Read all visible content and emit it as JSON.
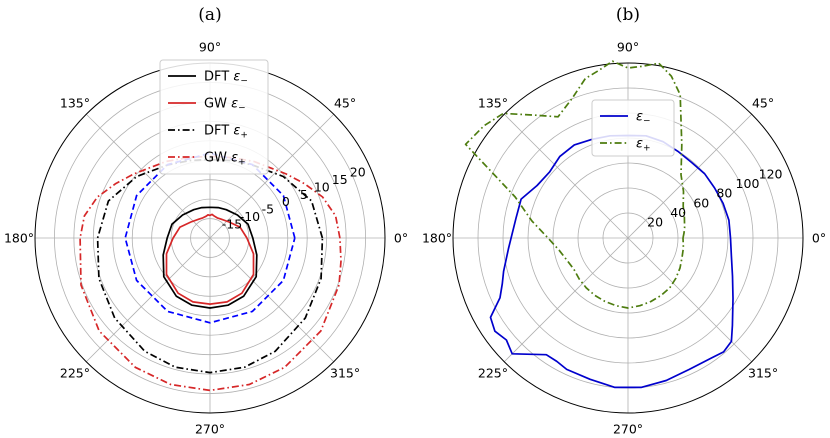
{
  "chart_data": [
    {
      "type": "line",
      "projection": "polar",
      "panel_label": "(a)",
      "title": "",
      "angle_ticks": [
        "0°",
        "45°",
        "90°",
        "135°",
        "180°",
        "225°",
        "270°",
        "315°"
      ],
      "angle_tick_values_deg": [
        0,
        45,
        90,
        135,
        180,
        225,
        270,
        315
      ],
      "radial_ticks": [
        "-15",
        "-10",
        "-5",
        "0",
        "5",
        "10",
        "15",
        "20"
      ],
      "radial_tick_values": [
        -15,
        -10,
        -5,
        0,
        5,
        10,
        15,
        20
      ],
      "rlim": [
        -20,
        25
      ],
      "radial_label_angle_deg": 22.5,
      "grid": true,
      "legend_placement": "top-center",
      "series": [
        {
          "name": "DFT ε−",
          "legend_main": "DFT ",
          "legend_symbol": "ε",
          "legend_sub": "−",
          "color": "#000000",
          "dash": "solid",
          "angles_deg": [
            0,
            20,
            40,
            60,
            75,
            90,
            105,
            120,
            140,
            160,
            180,
            200,
            220,
            240,
            255,
            270,
            285,
            300,
            320,
            340,
            360
          ],
          "r": [
            -9.0,
            -9.6,
            -10.8,
            -11.6,
            -11.9,
            -12.1,
            -11.9,
            -11.6,
            -10.8,
            -9.6,
            -9.0,
            -7.2,
            -4.5,
            -2.7,
            -2.1,
            -2.0,
            -2.1,
            -2.7,
            -4.5,
            -7.2,
            -9.0
          ]
        },
        {
          "name": "GW ε−",
          "legend_main": "GW ",
          "legend_symbol": "ε",
          "legend_sub": "−",
          "color": "#d62728",
          "dash": "solid",
          "angles_deg": [
            0,
            20,
            40,
            60,
            70,
            80,
            85,
            90,
            95,
            100,
            110,
            120,
            140,
            160,
            180,
            200,
            220,
            240,
            255,
            270,
            285,
            300,
            320,
            340,
            360
          ],
          "r": [
            -10.5,
            -11.8,
            -13.6,
            -14.4,
            -14.5,
            -14.2,
            -13.9,
            -14.2,
            -14.0,
            -14.3,
            -14.5,
            -14.4,
            -13.6,
            -11.8,
            -10.5,
            -8.1,
            -5.4,
            -3.6,
            -3.0,
            -3.0,
            -3.0,
            -3.6,
            -5.4,
            -8.1,
            -10.5
          ]
        },
        {
          "name": "DFT ε+",
          "legend_main": "DFT ",
          "legend_symbol": "ε",
          "legend_sub": "+",
          "color": "#000000",
          "dash": "dashdot",
          "angles_deg": [
            0,
            20,
            40,
            60,
            75,
            90,
            105,
            120,
            140,
            160,
            180,
            200,
            220,
            240,
            255,
            270,
            285,
            300,
            320,
            340,
            360
          ],
          "r": [
            8.9,
            7.8,
            4.6,
            1.7,
            0.6,
            0.2,
            0.6,
            1.7,
            4.6,
            7.8,
            8.9,
            10.4,
            12.0,
            13.6,
            14.4,
            14.6,
            14.4,
            13.6,
            12.0,
            10.4,
            8.9
          ]
        },
        {
          "name": "GW ε+",
          "legend_main": "GW ",
          "legend_symbol": "ε",
          "legend_sub": "+",
          "color": "#d62728",
          "dash": "dashdot",
          "angles_deg": [
            0,
            10,
            20,
            30,
            40,
            60,
            75,
            90,
            105,
            120,
            140,
            150,
            160,
            170,
            180,
            200,
            220,
            240,
            255,
            270,
            285,
            300,
            320,
            340,
            350,
            360
          ],
          "r": [
            13.4,
            12.8,
            10.8,
            8.0,
            5.6,
            2.7,
            1.4,
            1.0,
            1.4,
            2.7,
            5.6,
            8.0,
            10.8,
            12.8,
            13.4,
            15.3,
            17.2,
            18.4,
            19.0,
            19.2,
            19.0,
            18.4,
            17.2,
            15.3,
            14.2,
            13.4
          ]
        },
        {
          "name": "",
          "legend_main": "",
          "legend_symbol": "",
          "legend_sub": "",
          "color": "#0000ff",
          "dash": "dashed",
          "in_legend": false,
          "angles_deg": [
            0,
            30,
            60,
            90,
            120,
            150,
            180,
            210,
            240,
            270,
            300,
            330,
            360
          ],
          "r": [
            1.8,
            1.8,
            1.8,
            1.8,
            1.8,
            1.8,
            1.8,
            1.8,
            1.8,
            1.8,
            1.8,
            1.8,
            1.8
          ]
        }
      ]
    },
    {
      "type": "line",
      "projection": "polar",
      "panel_label": "(b)",
      "title": "",
      "angle_ticks": [
        "0°",
        "45°",
        "90°",
        "135°",
        "180°",
        "225°",
        "270°",
        "315°"
      ],
      "angle_tick_values_deg": [
        0,
        45,
        90,
        135,
        180,
        225,
        270,
        315
      ],
      "radial_ticks": [
        "20",
        "40",
        "60",
        "80",
        "100",
        "120"
      ],
      "radial_tick_values": [
        20,
        40,
        60,
        80,
        100,
        120
      ],
      "rlim": [
        0,
        140
      ],
      "radial_label_angle_deg": 22.5,
      "grid": true,
      "legend_placement": "top-center",
      "series": [
        {
          "name": "ε−",
          "legend_main": "",
          "legend_symbol": "ε",
          "legend_sub": "−",
          "color": "#0000cc",
          "dash": "solid",
          "angles_deg": [
            0,
            10,
            20,
            30,
            40,
            50,
            60,
            70,
            80,
            90,
            100,
            110,
            120,
            130,
            140,
            150,
            160,
            170,
            185,
            195,
            200,
            205,
            210,
            215,
            220,
            225,
            235,
            240,
            245,
            255,
            265,
            275,
            285,
            295,
            305,
            310,
            315,
            320,
            330,
            340,
            350,
            360
          ],
          "r": [
            82,
            82,
            81,
            80,
            80,
            79,
            80,
            82,
            83,
            82,
            83,
            84,
            86,
            85,
            82,
            84,
            91,
            91,
            96,
            103,
            107,
            113,
            127,
            130,
            127,
            131,
            114,
            114,
            116,
            117,
            120,
            120,
            118,
            116,
            117,
            119,
            117,
            109,
            97,
            89,
            84,
            82
          ]
        },
        {
          "name": "ε+",
          "legend_main": "",
          "legend_symbol": "ε",
          "legend_sub": "+",
          "color": "#4d7c0f",
          "dash": "dashdot",
          "angles_deg": [
            0,
            5,
            10,
            20,
            30,
            40,
            50,
            60,
            70,
            75,
            80,
            85,
            90,
            95,
            100,
            105,
            112,
            120,
            127,
            135,
            142,
            150,
            160,
            170,
            180,
            190,
            200,
            210,
            220,
            230,
            240,
            250,
            260,
            270,
            280,
            290,
            300,
            310,
            320,
            330,
            340,
            350,
            360
          ],
          "r": [
            44,
            45,
            46,
            48,
            51,
            58,
            66,
            86,
            122,
            134,
            142,
            138,
            136,
            142,
            136,
            132,
            120,
            112,
            123,
            141,
            146,
            150,
            96,
            78,
            64,
            56,
            52,
            50,
            51,
            52,
            53,
            54,
            55,
            56,
            55,
            54,
            53,
            52,
            50,
            48,
            46,
            45,
            44
          ]
        }
      ]
    }
  ]
}
